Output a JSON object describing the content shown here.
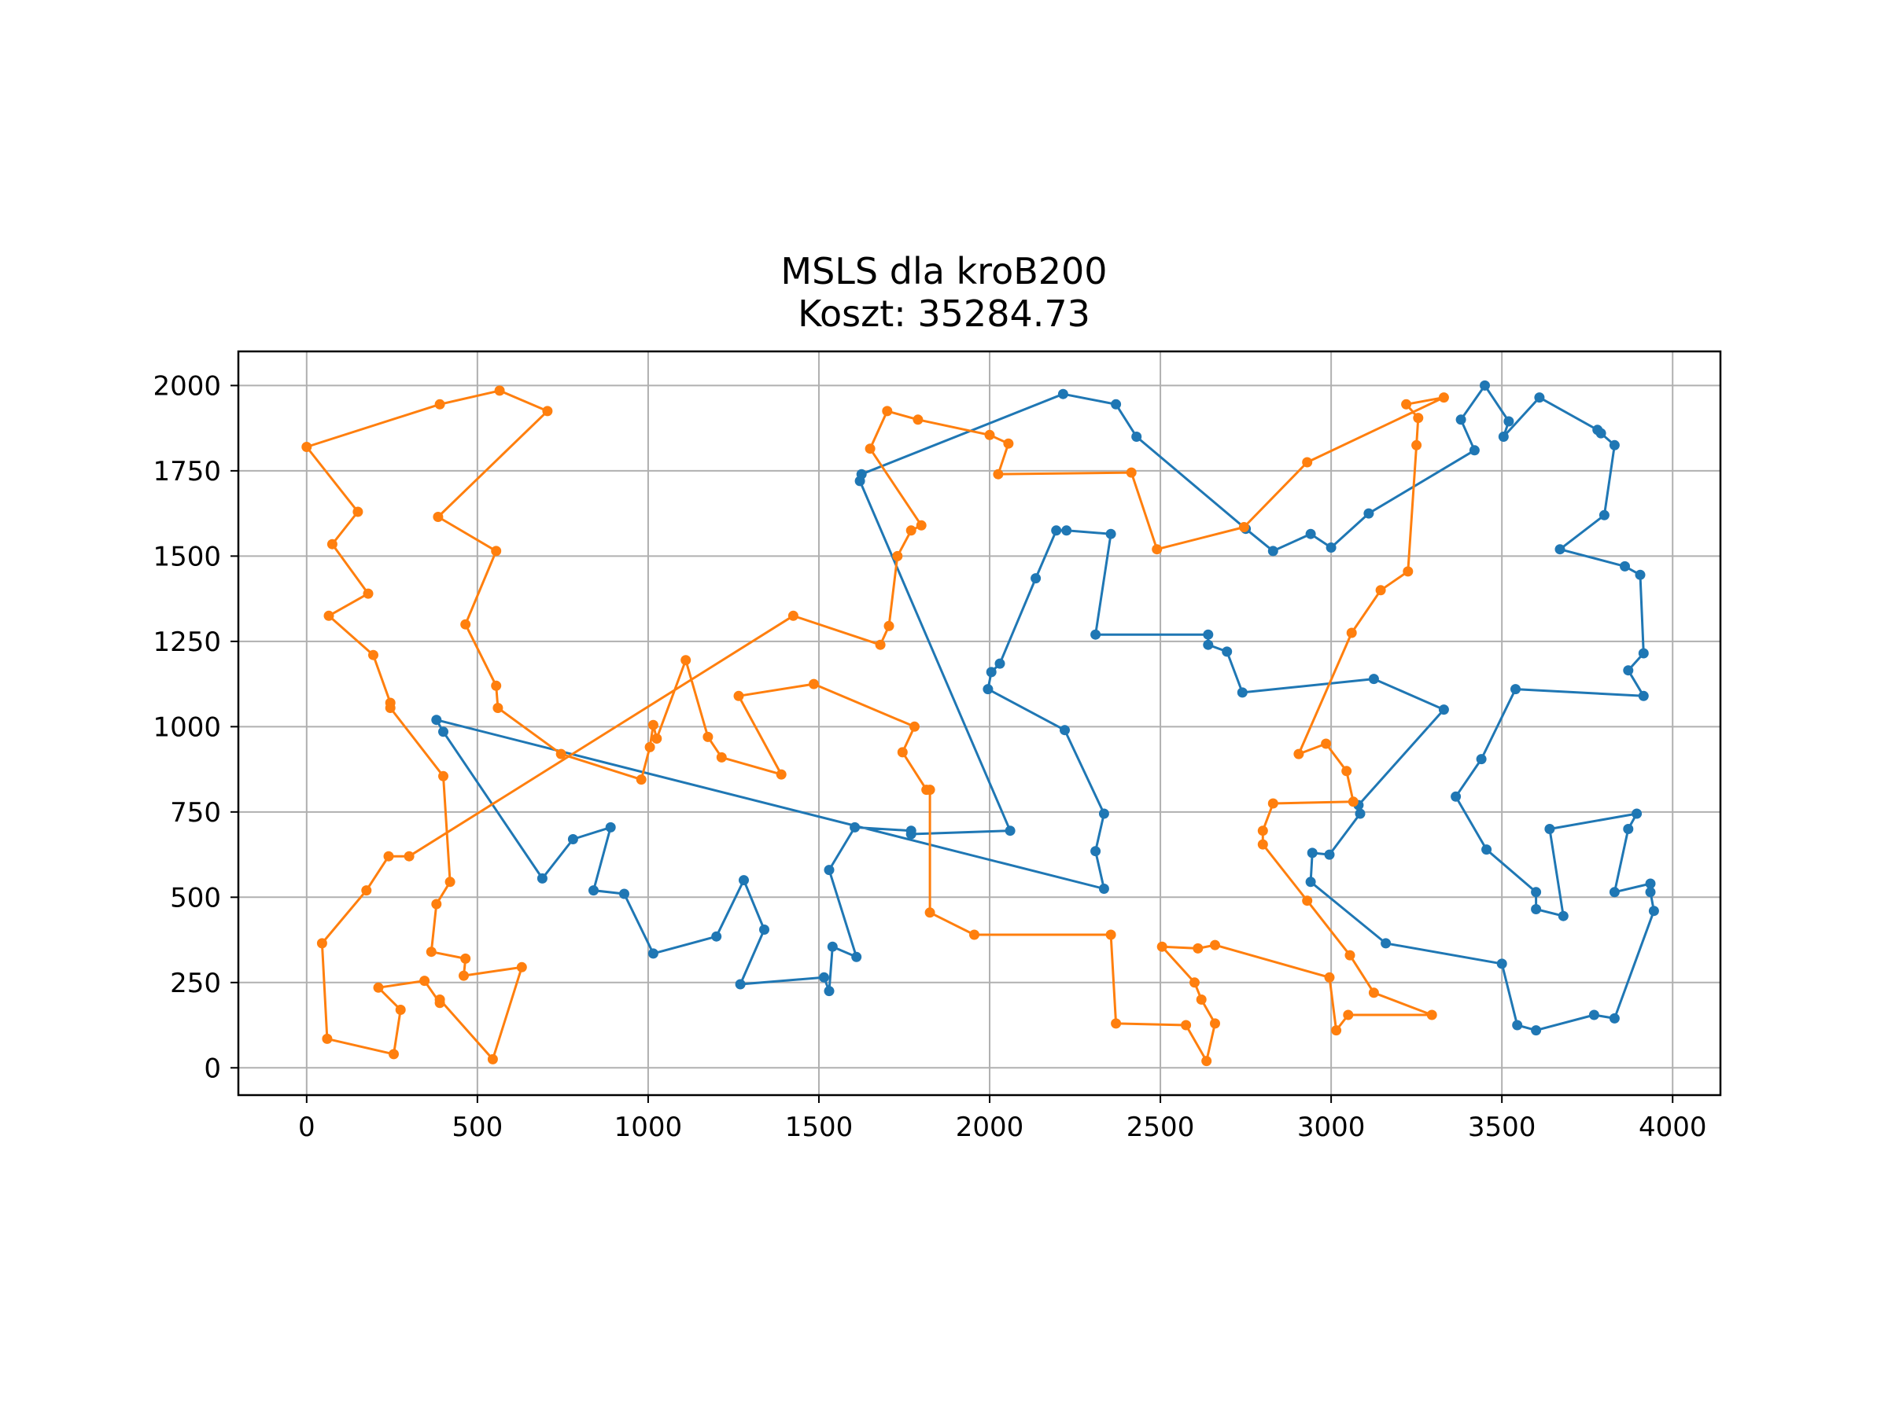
{
  "chart_data": {
    "type": "line",
    "title": "MSLS dla kroB200",
    "subtitle": "Koszt: 35284.73",
    "xlim": [
      -200,
      4140
    ],
    "ylim": [
      -80,
      2100
    ],
    "x_ticks": [
      0,
      500,
      1000,
      1500,
      2000,
      2500,
      3000,
      3500,
      4000
    ],
    "y_ticks": [
      0,
      250,
      500,
      750,
      1000,
      1250,
      1500,
      1750,
      2000
    ],
    "grid": true,
    "legend": "none",
    "series": [
      {
        "color": "#1f77b4",
        "points": [
          [
            380,
            1020
          ],
          [
            400,
            985
          ],
          [
            690,
            555
          ],
          [
            780,
            670
          ],
          [
            890,
            705
          ],
          [
            840,
            520
          ],
          [
            930,
            510
          ],
          [
            1015,
            335
          ],
          [
            1200,
            385
          ],
          [
            1280,
            550
          ],
          [
            1340,
            405
          ],
          [
            1270,
            245
          ],
          [
            1515,
            265
          ],
          [
            1530,
            225
          ],
          [
            1540,
            355
          ],
          [
            1610,
            325
          ],
          [
            1530,
            580
          ],
          [
            1605,
            705
          ],
          [
            1770,
            695
          ],
          [
            1770,
            685
          ],
          [
            2060,
            695
          ],
          [
            1620,
            1720
          ],
          [
            1625,
            1740
          ],
          [
            2215,
            1975
          ],
          [
            2370,
            1945
          ],
          [
            2430,
            1850
          ],
          [
            2750,
            1580
          ],
          [
            2830,
            1515
          ],
          [
            2940,
            1565
          ],
          [
            3000,
            1525
          ],
          [
            3110,
            1625
          ],
          [
            3420,
            1810
          ],
          [
            3380,
            1900
          ],
          [
            3450,
            2000
          ],
          [
            3520,
            1895
          ],
          [
            3505,
            1850
          ],
          [
            3610,
            1965
          ],
          [
            3780,
            1870
          ],
          [
            3790,
            1860
          ],
          [
            3830,
            1825
          ],
          [
            3800,
            1620
          ],
          [
            3670,
            1520
          ],
          [
            3860,
            1470
          ],
          [
            3905,
            1445
          ],
          [
            3915,
            1215
          ],
          [
            3870,
            1165
          ],
          [
            3915,
            1090
          ],
          [
            3540,
            1110
          ],
          [
            3440,
            905
          ],
          [
            3365,
            795
          ],
          [
            3455,
            640
          ],
          [
            3600,
            515
          ],
          [
            3600,
            465
          ],
          [
            3680,
            445
          ],
          [
            3640,
            700
          ],
          [
            3895,
            745
          ],
          [
            3870,
            700
          ],
          [
            3830,
            515
          ],
          [
            3935,
            540
          ],
          [
            3935,
            515
          ],
          [
            3945,
            460
          ],
          [
            3830,
            145
          ],
          [
            3770,
            155
          ],
          [
            3600,
            110
          ],
          [
            3545,
            125
          ],
          [
            3500,
            305
          ],
          [
            3160,
            365
          ],
          [
            2940,
            545
          ],
          [
            2945,
            630
          ],
          [
            2995,
            625
          ],
          [
            3085,
            745
          ],
          [
            3080,
            770
          ],
          [
            3330,
            1050
          ],
          [
            3125,
            1140
          ],
          [
            2740,
            1100
          ],
          [
            2695,
            1220
          ],
          [
            2640,
            1240
          ],
          [
            2640,
            1270
          ],
          [
            2310,
            1270
          ],
          [
            2355,
            1565
          ],
          [
            2225,
            1575
          ],
          [
            2195,
            1575
          ],
          [
            2135,
            1435
          ],
          [
            2030,
            1185
          ],
          [
            2005,
            1160
          ],
          [
            1995,
            1110
          ],
          [
            2220,
            990
          ],
          [
            2335,
            745
          ],
          [
            2310,
            635
          ],
          [
            2335,
            525
          ]
        ]
      },
      {
        "color": "#ff7f0e",
        "points": [
          [
            0,
            1820
          ],
          [
            390,
            1945
          ],
          [
            565,
            1985
          ],
          [
            705,
            1925
          ],
          [
            385,
            1615
          ],
          [
            555,
            1515
          ],
          [
            465,
            1300
          ],
          [
            555,
            1120
          ],
          [
            560,
            1055
          ],
          [
            745,
            920
          ],
          [
            980,
            845
          ],
          [
            1005,
            940
          ],
          [
            1015,
            1005
          ],
          [
            1025,
            965
          ],
          [
            1110,
            1195
          ],
          [
            1175,
            970
          ],
          [
            1215,
            910
          ],
          [
            1390,
            860
          ],
          [
            1265,
            1090
          ],
          [
            1485,
            1125
          ],
          [
            1780,
            1000
          ],
          [
            1745,
            925
          ],
          [
            1815,
            815
          ],
          [
            1825,
            815
          ],
          [
            1825,
            455
          ],
          [
            1955,
            390
          ],
          [
            2355,
            390
          ],
          [
            2370,
            130
          ],
          [
            2575,
            125
          ],
          [
            2635,
            20
          ],
          [
            2660,
            130
          ],
          [
            2620,
            200
          ],
          [
            2600,
            250
          ],
          [
            2505,
            355
          ],
          [
            2610,
            350
          ],
          [
            2660,
            360
          ],
          [
            2995,
            265
          ],
          [
            3015,
            110
          ],
          [
            3050,
            155
          ],
          [
            3295,
            155
          ],
          [
            3125,
            220
          ],
          [
            3055,
            330
          ],
          [
            2930,
            490
          ],
          [
            2800,
            655
          ],
          [
            2800,
            695
          ],
          [
            2830,
            775
          ],
          [
            3065,
            780
          ],
          [
            3045,
            870
          ],
          [
            2985,
            950
          ],
          [
            2905,
            920
          ],
          [
            3060,
            1275
          ],
          [
            3145,
            1400
          ],
          [
            3225,
            1455
          ],
          [
            3250,
            1825
          ],
          [
            3255,
            1905
          ],
          [
            3220,
            1945
          ],
          [
            3330,
            1965
          ],
          [
            2930,
            1775
          ],
          [
            2745,
            1585
          ],
          [
            2490,
            1520
          ],
          [
            2415,
            1745
          ],
          [
            2025,
            1740
          ],
          [
            2055,
            1830
          ],
          [
            2000,
            1855
          ],
          [
            1790,
            1900
          ],
          [
            1700,
            1925
          ],
          [
            1650,
            1815
          ],
          [
            1800,
            1590
          ],
          [
            1770,
            1575
          ],
          [
            1730,
            1500
          ],
          [
            1705,
            1295
          ],
          [
            1680,
            1240
          ],
          [
            1425,
            1325
          ],
          [
            300,
            620
          ],
          [
            240,
            620
          ],
          [
            175,
            520
          ],
          [
            45,
            365
          ],
          [
            60,
            85
          ],
          [
            255,
            40
          ],
          [
            275,
            170
          ],
          [
            210,
            235
          ],
          [
            345,
            255
          ],
          [
            390,
            190
          ],
          [
            390,
            200
          ],
          [
            545,
            25
          ],
          [
            630,
            295
          ],
          [
            460,
            270
          ],
          [
            465,
            320
          ],
          [
            365,
            340
          ],
          [
            380,
            480
          ],
          [
            420,
            545
          ],
          [
            400,
            855
          ],
          [
            245,
            1055
          ],
          [
            245,
            1070
          ],
          [
            195,
            1210
          ],
          [
            65,
            1325
          ],
          [
            180,
            1390
          ],
          [
            75,
            1535
          ],
          [
            150,
            1630
          ]
        ]
      }
    ]
  }
}
